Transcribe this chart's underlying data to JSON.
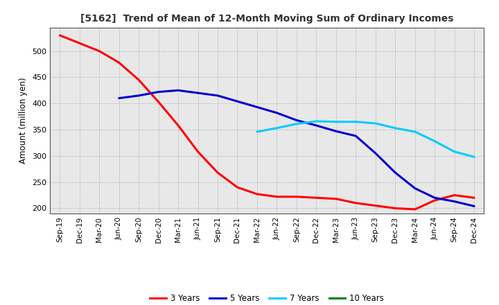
{
  "title": "[5162]  Trend of Mean of 12-Month Moving Sum of Ordinary Incomes",
  "ylabel": "Amount (million yen)",
  "ylim": [
    190,
    545
  ],
  "yticks": [
    200,
    250,
    300,
    350,
    400,
    450,
    500
  ],
  "background_color": "#ffffff",
  "plot_bg_color": "#e8e8e8",
  "grid_color": "#999999",
  "x_labels": [
    "Sep-19",
    "Dec-19",
    "Mar-20",
    "Jun-20",
    "Sep-20",
    "Dec-20",
    "Mar-21",
    "Jun-21",
    "Sep-21",
    "Dec-21",
    "Mar-22",
    "Jun-22",
    "Sep-22",
    "Dec-22",
    "Mar-23",
    "Jun-23",
    "Sep-23",
    "Dec-23",
    "Mar-24",
    "Jun-24",
    "Sep-24",
    "Dec-24"
  ],
  "series_3y": {
    "color": "#ff0000",
    "label": "3 Years",
    "values": [
      530,
      515,
      500,
      478,
      445,
      403,
      358,
      308,
      268,
      240,
      227,
      222,
      222,
      220,
      218,
      210,
      205,
      200,
      198,
      215,
      225,
      220
    ]
  },
  "series_5y": {
    "color": "#0000cc",
    "label": "5 Years",
    "values": [
      null,
      null,
      null,
      410,
      415,
      422,
      425,
      420,
      415,
      404,
      393,
      382,
      368,
      358,
      347,
      338,
      305,
      268,
      238,
      220,
      213,
      204
    ]
  },
  "series_7y": {
    "color": "#00ccff",
    "label": "7 Years",
    "values": [
      null,
      null,
      null,
      null,
      null,
      null,
      null,
      null,
      null,
      null,
      346,
      353,
      361,
      366,
      365,
      365,
      362,
      353,
      346,
      328,
      308,
      298
    ]
  },
  "series_10y": {
    "color": "#008000",
    "label": "10 Years",
    "values": [
      null,
      null,
      null,
      null,
      null,
      null,
      null,
      null,
      null,
      null,
      null,
      null,
      null,
      null,
      null,
      null,
      null,
      null,
      null,
      null,
      null,
      null
    ]
  },
  "linewidth": 2.2
}
